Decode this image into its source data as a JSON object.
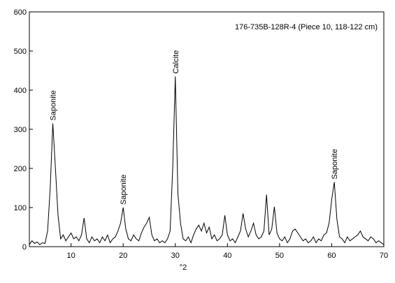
{
  "chart_data": {
    "type": "line",
    "title": "176-735B-128R-4 (Piece 10, 118-122 cm)",
    "x_label": "°2",
    "color": "#000000",
    "xlim": [
      2,
      70
    ],
    "xticks": [
      10,
      20,
      30,
      40,
      50,
      60,
      70
    ],
    "ylim": [
      0,
      600
    ],
    "yticks": [
      0,
      100,
      200,
      300,
      400,
      500,
      600
    ],
    "x": [
      2,
      2.5,
      3,
      3.5,
      4,
      4.5,
      5,
      5.5,
      6,
      6.5,
      7,
      7.5,
      8,
      8.5,
      9,
      9.5,
      10,
      10.5,
      11,
      11.5,
      12,
      12.5,
      13,
      13.5,
      14,
      14.5,
      15,
      15.5,
      16,
      16.5,
      17,
      17.5,
      18,
      18.5,
      19,
      19.5,
      20,
      20.5,
      21,
      21.5,
      22,
      22.5,
      23,
      23.5,
      24,
      24.5,
      25,
      25.5,
      26,
      26.5,
      27,
      27.5,
      28,
      28.5,
      29,
      29.5,
      30,
      30.5,
      31,
      31.5,
      32,
      32.5,
      33,
      33.5,
      34,
      34.5,
      35,
      35.5,
      36,
      36.5,
      37,
      37.5,
      38,
      38.5,
      39,
      39.5,
      40,
      40.5,
      41,
      41.5,
      42,
      42.5,
      43,
      43.5,
      44,
      44.5,
      45,
      45.5,
      46,
      46.5,
      47,
      47.5,
      48,
      48.5,
      49,
      49.5,
      50,
      50.5,
      51,
      51.5,
      52,
      52.5,
      53,
      53.5,
      54,
      54.5,
      55,
      55.5,
      56,
      56.5,
      57,
      57.5,
      58,
      58.5,
      59,
      59.5,
      60,
      60.5,
      61,
      61.5,
      62,
      62.5,
      63,
      63.5,
      64,
      64.5,
      65,
      65.5,
      66,
      66.5,
      67,
      67.5,
      68,
      68.5,
      69,
      69.5,
      70
    ],
    "values": [
      5,
      15,
      8,
      12,
      5,
      10,
      8,
      40,
      150,
      315,
      200,
      80,
      20,
      30,
      15,
      25,
      35,
      20,
      25,
      15,
      30,
      73,
      20,
      10,
      25,
      15,
      20,
      10,
      25,
      15,
      30,
      10,
      20,
      25,
      40,
      60,
      100,
      45,
      20,
      15,
      30,
      20,
      15,
      35,
      50,
      60,
      75,
      30,
      15,
      20,
      10,
      15,
      10,
      20,
      40,
      200,
      435,
      135,
      60,
      20,
      15,
      25,
      10,
      30,
      45,
      55,
      40,
      60,
      35,
      50,
      20,
      30,
      15,
      20,
      30,
      80,
      30,
      15,
      20,
      10,
      25,
      40,
      85,
      45,
      25,
      40,
      60,
      30,
      20,
      25,
      40,
      133,
      30,
      45,
      102,
      35,
      20,
      15,
      25,
      10,
      20,
      40,
      45,
      35,
      25,
      15,
      20,
      10,
      15,
      25,
      10,
      20,
      15,
      30,
      35,
      60,
      120,
      165,
      70,
      25,
      20,
      10,
      25,
      15,
      20,
      25,
      30,
      40,
      25,
      20,
      15,
      25,
      20,
      10,
      15,
      10,
      5
    ],
    "annotations": [
      {
        "text": "Saponite",
        "x": 6.5,
        "y": 315
      },
      {
        "text": "Saponite",
        "x": 20,
        "y": 100
      },
      {
        "text": "Calcite",
        "x": 30,
        "y": 435
      },
      {
        "text": "Saponite",
        "x": 60.5,
        "y": 165
      }
    ]
  }
}
